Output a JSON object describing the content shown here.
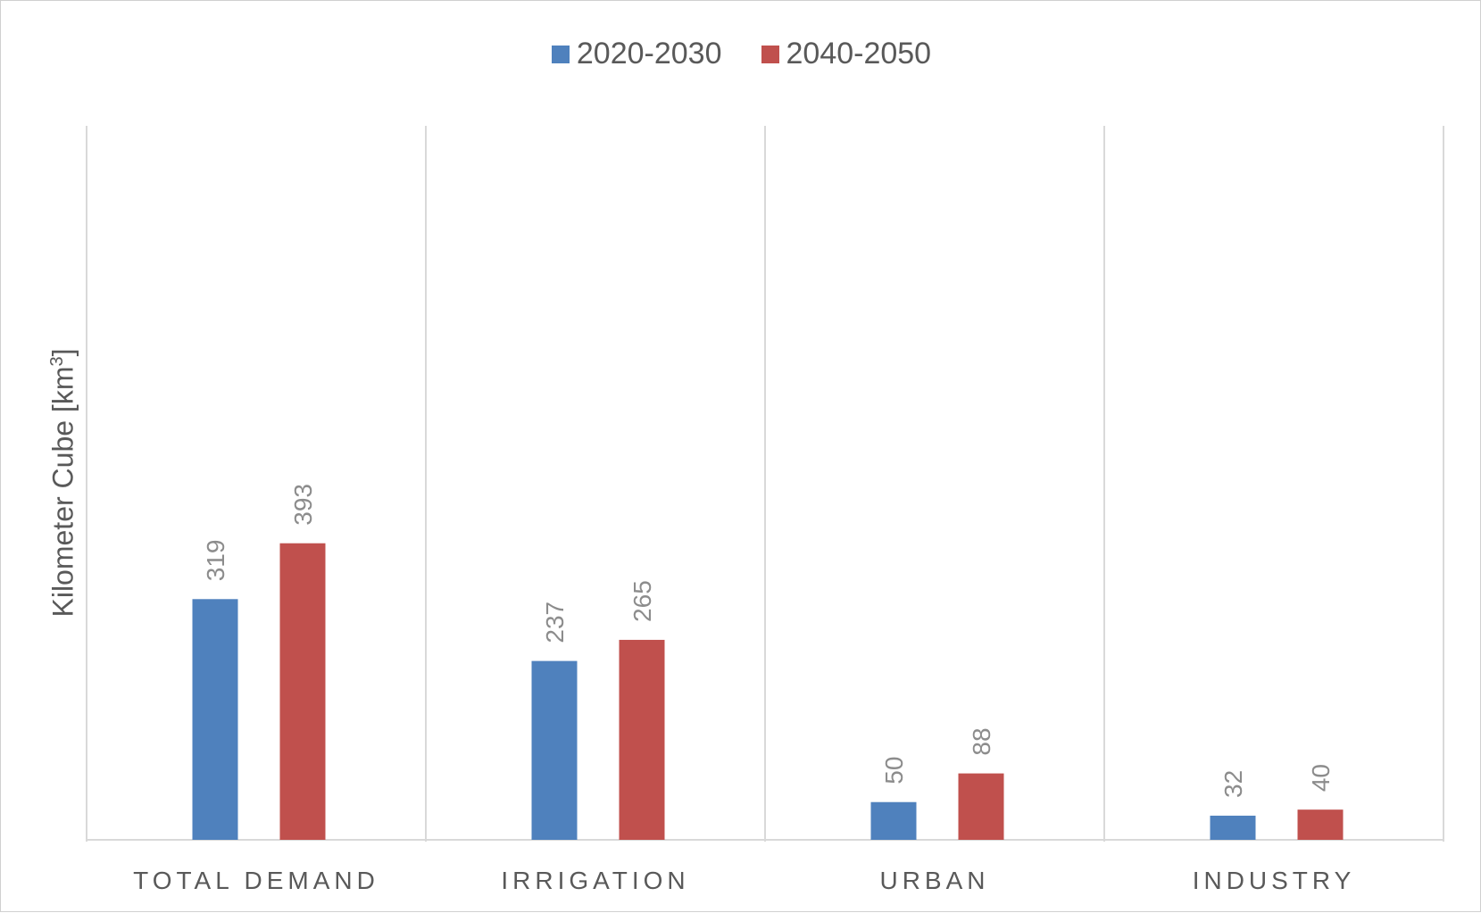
{
  "chart_data": {
    "type": "bar",
    "categories": [
      "TOTAL DEMAND",
      "IRRIGATION",
      "URBAN",
      "INDUSTRY"
    ],
    "series": [
      {
        "name": "2020-2030",
        "color": "#4F81BD",
        "values": [
          319,
          237,
          50,
          32
        ]
      },
      {
        "name": "2040-2050",
        "color": "#C0504D",
        "values": [
          393,
          265,
          88,
          40
        ]
      }
    ],
    "title": "",
    "xlabel": "",
    "ylabel": "Kilometer Cube [km",
    "ylabel_sup": "3",
    "ylabel_suffix": "]",
    "ylim": [
      0,
      450
    ],
    "grid": "vertical category separators",
    "legend_position": "top-center",
    "data_labels": "rotated above bars"
  }
}
